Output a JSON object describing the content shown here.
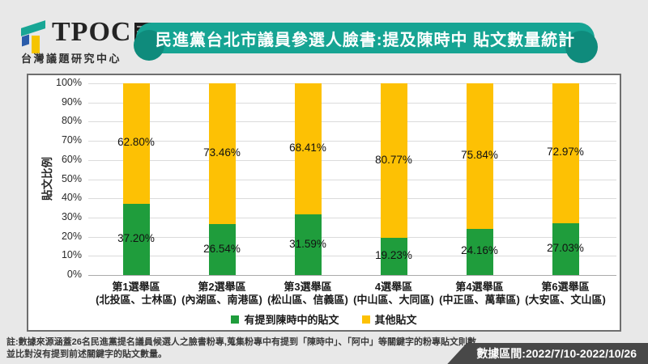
{
  "header": {
    "logo": {
      "brand": "TPOC",
      "subtitle": "台灣議題研究中心"
    },
    "title": "民進黨台北市議員參選人臉書:提及陳時中 貼文數量統計"
  },
  "chart_data": {
    "type": "bar",
    "stacked": true,
    "title": "民進黨台北市議員參選人臉書:提及陳時中 貼文數量統計",
    "ylabel": "貼文比例",
    "ylim": [
      0,
      100
    ],
    "ytick_step": 10,
    "ytick_suffix": "%",
    "grid": true,
    "legend_position": "bottom",
    "categories": [
      [
        "第1選舉區",
        "(北投區、士林區)"
      ],
      [
        "第2選舉區",
        "(內湖區、南港區)"
      ],
      [
        "第3選舉區",
        "(松山區、信義區)"
      ],
      [
        "4選舉區",
        "(中山區、大同區)"
      ],
      [
        "第4選舉區",
        "(中正區、萬華區)"
      ],
      [
        "第6選舉區",
        "(大安區、文山區)"
      ]
    ],
    "series": [
      {
        "name": "有提到陳時中的貼文",
        "color": "#1F9D3C",
        "values": [
          37.2,
          26.54,
          31.59,
          19.23,
          24.16,
          27.03
        ]
      },
      {
        "name": "其他貼文",
        "color": "#FDC104",
        "values": [
          62.8,
          73.46,
          68.41,
          80.77,
          75.84,
          72.97
        ]
      }
    ]
  },
  "footer": {
    "note_line1": "註:數據來源涵蓋26名民進黨提名議員候選人之臉書粉專,蒐集粉專中有提到「陳時中」、「阿中」等關鍵字的粉專貼文則數,",
    "note_line2": "並比對沒有提到前述關鍵字的貼文數量。",
    "period_badge": "數據區間:2022/7/10-2022/10/26"
  },
  "theme": {
    "banner_teal": "#16A493",
    "banner_accent": "#0F8B7C",
    "badge_gray": "#484848",
    "page_background": "#E8E8E8"
  }
}
